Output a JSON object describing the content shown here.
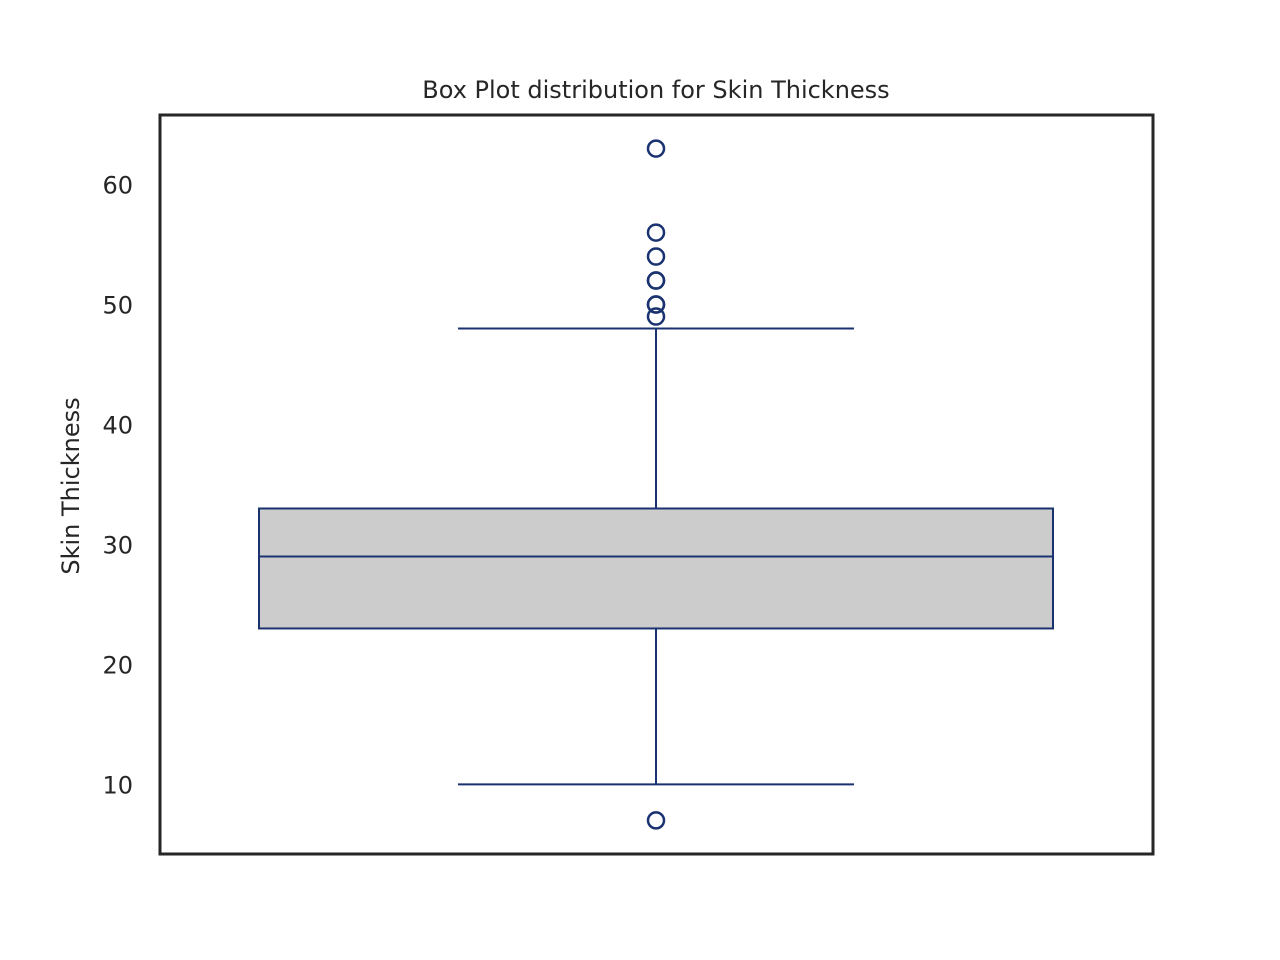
{
  "chart_data": {
    "type": "box",
    "title": "Box Plot distribution for Skin Thickness",
    "xlabel": "",
    "ylabel": "Skin Thickness",
    "ylim": [
      4.2,
      65.8
    ],
    "yticks": [
      10,
      20,
      30,
      40,
      50,
      60
    ],
    "grid": false,
    "box": {
      "q1": 23,
      "median": 29,
      "q3": 33,
      "whisker_low": 10,
      "whisker_high": 48
    },
    "outliers": [
      7,
      49,
      50,
      50,
      52,
      52,
      54,
      56,
      63
    ],
    "colors": {
      "box_fill": "#cccccc",
      "box_edge": "#1a3370",
      "axes_edge": "#262626",
      "text": "#262626"
    }
  }
}
